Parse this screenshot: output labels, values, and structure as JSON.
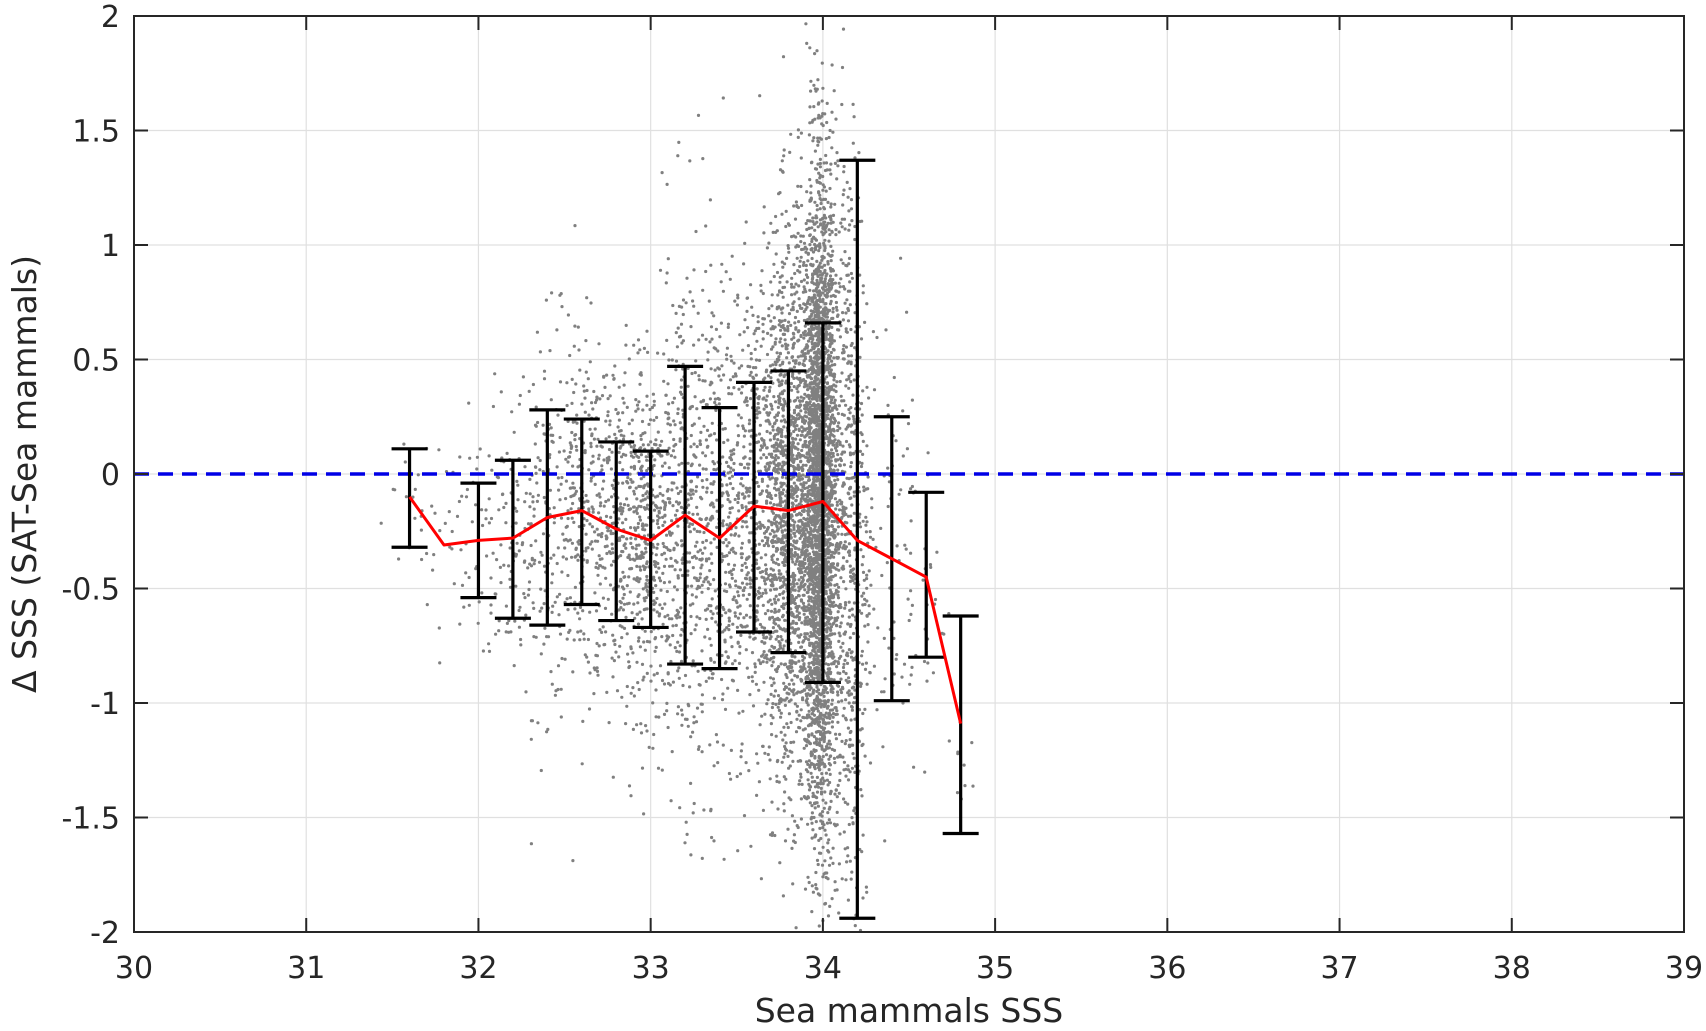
{
  "chart_data": {
    "type": "scatter",
    "xlabel": "Sea mammals SSS",
    "ylabel": "Δ SSS (SAT-Sea mammals)",
    "xlim": [
      30,
      39
    ],
    "ylim": [
      -2,
      2
    ],
    "xticks": [
      30,
      31,
      32,
      33,
      34,
      35,
      36,
      37,
      38,
      39
    ],
    "yticks": [
      -2,
      -1.5,
      -1,
      -0.5,
      0,
      0.5,
      1,
      1.5,
      2
    ],
    "xtick_labels": [
      "30",
      "31",
      "32",
      "33",
      "34",
      "35",
      "36",
      "37",
      "38",
      "39"
    ],
    "ytick_labels": [
      "-2",
      "-1.5",
      "-1",
      "-0.5",
      "0",
      "0.5",
      "1",
      "1.5",
      "2"
    ],
    "grid": true,
    "reference_line": {
      "y": 0,
      "style": "dashed",
      "color": "#0000e6"
    },
    "scatter_color": "#808080",
    "mean_line_color": "#ff0000",
    "errorbar_color": "#000000",
    "binned_stats": {
      "x": [
        31.6,
        31.8,
        32.0,
        32.2,
        32.4,
        32.6,
        32.8,
        33.0,
        33.2,
        33.4,
        33.6,
        33.8,
        34.0,
        34.2,
        34.4,
        34.6,
        34.8
      ],
      "mean": [
        -0.1,
        -0.31,
        -0.29,
        -0.28,
        -0.19,
        -0.16,
        -0.24,
        -0.29,
        -0.18,
        -0.28,
        -0.14,
        -0.16,
        -0.12,
        -0.29,
        -0.37,
        -0.45,
        -1.09
      ],
      "lower": [
        -0.32,
        null,
        -0.54,
        -0.63,
        -0.66,
        -0.57,
        -0.64,
        -0.67,
        -0.83,
        -0.85,
        -0.69,
        -0.78,
        -0.91,
        -1.94,
        -0.99,
        -0.8,
        -1.57
      ],
      "upper": [
        0.11,
        null,
        -0.04,
        0.06,
        0.28,
        0.24,
        0.14,
        0.1,
        0.47,
        0.29,
        0.4,
        0.45,
        0.66,
        1.37,
        0.25,
        -0.08,
        -0.62
      ]
    },
    "scatter_distribution": [
      {
        "x_center": 31.6,
        "x_spread": 0.08,
        "y_mean": -0.12,
        "y_sd": 0.18,
        "n": 15
      },
      {
        "x_center": 31.8,
        "x_spread": 0.08,
        "y_mean": -0.3,
        "y_sd": 0.2,
        "n": 20
      },
      {
        "x_center": 32.0,
        "x_spread": 0.09,
        "y_mean": -0.29,
        "y_sd": 0.24,
        "n": 45
      },
      {
        "x_center": 32.2,
        "x_spread": 0.09,
        "y_mean": -0.28,
        "y_sd": 0.33,
        "n": 90
      },
      {
        "x_center": 32.4,
        "x_spread": 0.09,
        "y_mean": -0.19,
        "y_sd": 0.42,
        "n": 150
      },
      {
        "x_center": 32.6,
        "x_spread": 0.09,
        "y_mean": -0.16,
        "y_sd": 0.38,
        "n": 220
      },
      {
        "x_center": 32.8,
        "x_spread": 0.09,
        "y_mean": -0.24,
        "y_sd": 0.38,
        "n": 300
      },
      {
        "x_center": 33.0,
        "x_spread": 0.09,
        "y_mean": -0.29,
        "y_sd": 0.38,
        "n": 380
      },
      {
        "x_center": 33.2,
        "x_spread": 0.09,
        "y_mean": -0.18,
        "y_sd": 0.6,
        "n": 330
      },
      {
        "x_center": 33.4,
        "x_spread": 0.09,
        "y_mean": -0.28,
        "y_sd": 0.55,
        "n": 320
      },
      {
        "x_center": 33.6,
        "x_spread": 0.09,
        "y_mean": -0.14,
        "y_sd": 0.5,
        "n": 500
      },
      {
        "x_center": 33.8,
        "x_spread": 0.07,
        "y_mean": -0.16,
        "y_sd": 0.6,
        "n": 1300
      },
      {
        "x_center": 33.98,
        "x_spread": 0.05,
        "y_mean": -0.12,
        "y_sd": 0.7,
        "n": 3200
      },
      {
        "x_center": 34.15,
        "x_spread": 0.06,
        "y_mean": -0.29,
        "y_sd": 0.9,
        "n": 650
      },
      {
        "x_center": 34.4,
        "x_spread": 0.08,
        "y_mean": -0.37,
        "y_sd": 0.55,
        "n": 70
      },
      {
        "x_center": 34.6,
        "x_spread": 0.06,
        "y_mean": -0.45,
        "y_sd": 0.35,
        "n": 25
      },
      {
        "x_center": 34.8,
        "x_spread": 0.05,
        "y_mean": -1.09,
        "y_sd": 0.35,
        "n": 10
      }
    ]
  }
}
